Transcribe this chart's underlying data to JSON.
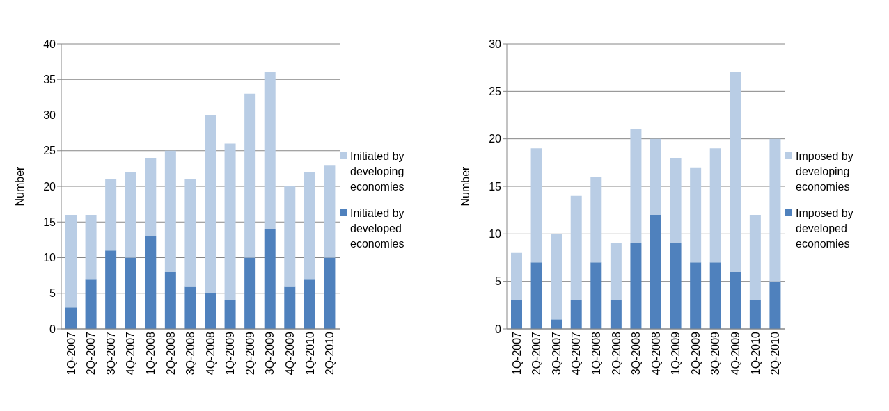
{
  "chart_data": [
    {
      "type": "bar",
      "stacked": true,
      "ylabel": "Number",
      "categories": [
        "1Q-2007",
        "2Q-2007",
        "3Q-2007",
        "4Q-2007",
        "1Q-2008",
        "2Q-2008",
        "3Q-2008",
        "4Q-2008",
        "1Q-2009",
        "2Q-2009",
        "3Q-2009",
        "4Q-2009",
        "1Q-2010",
        "2Q-2010"
      ],
      "series": [
        {
          "name": "Initiated by developed economies",
          "color": "#4f81bd",
          "values": [
            3,
            7,
            11,
            10,
            13,
            8,
            6,
            5,
            4,
            10,
            14,
            6,
            7,
            10
          ]
        },
        {
          "name": "Initiated by developing economies",
          "color": "#b9cde5",
          "values": [
            13,
            9,
            10,
            12,
            11,
            17,
            15,
            25,
            22,
            23,
            22,
            14,
            15,
            13
          ]
        }
      ],
      "ylim": [
        0,
        40
      ],
      "yticks": [
        0,
        5,
        10,
        15,
        20,
        25,
        30,
        35,
        40
      ],
      "grid": "y",
      "legend": "right"
    },
    {
      "type": "bar",
      "stacked": true,
      "ylabel": "Number",
      "categories": [
        "1Q-2007",
        "2Q-2007",
        "3Q-2007",
        "4Q-2007",
        "1Q-2008",
        "2Q-2008",
        "3Q-2008",
        "4Q-2008",
        "1Q-2009",
        "2Q-2009",
        "3Q-2009",
        "4Q-2009",
        "1Q-2010",
        "2Q-2010"
      ],
      "series": [
        {
          "name": "Imposed by developed economies",
          "color": "#4f81bd",
          "values": [
            3,
            7,
            1,
            3,
            7,
            3,
            9,
            12,
            9,
            7,
            7,
            6,
            3,
            5
          ]
        },
        {
          "name": "Imposed by developing economies",
          "color": "#b9cde5",
          "values": [
            5,
            12,
            9,
            11,
            9,
            6,
            12,
            8,
            9,
            10,
            12,
            21,
            9,
            15
          ]
        }
      ],
      "ylim": [
        0,
        30
      ],
      "yticks": [
        0,
        5,
        10,
        15,
        20,
        25,
        30
      ],
      "grid": "y",
      "legend": "right"
    }
  ]
}
